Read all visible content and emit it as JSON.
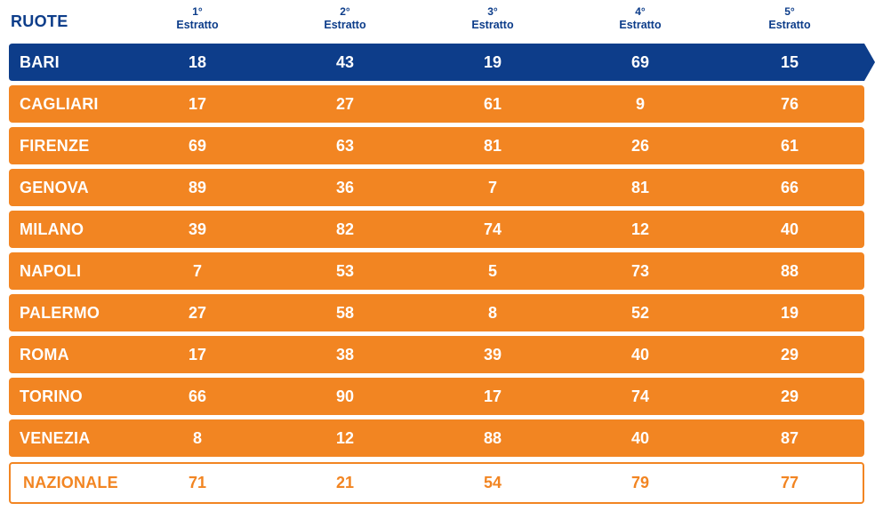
{
  "header": {
    "ruote_label": "RUOTE",
    "columns": [
      {
        "ord": "1°",
        "label": "Estratto"
      },
      {
        "ord": "2°",
        "label": "Estratto"
      },
      {
        "ord": "3°",
        "label": "Estratto"
      },
      {
        "ord": "4°",
        "label": "Estratto"
      },
      {
        "ord": "5°",
        "label": "Estratto"
      }
    ]
  },
  "rows": [
    {
      "city": "BARI",
      "numbers": [
        "18",
        "43",
        "19",
        "69",
        "15"
      ]
    },
    {
      "city": "CAGLIARI",
      "numbers": [
        "17",
        "27",
        "61",
        "9",
        "76"
      ]
    },
    {
      "city": "FIRENZE",
      "numbers": [
        "69",
        "63",
        "81",
        "26",
        "61"
      ]
    },
    {
      "city": "GENOVA",
      "numbers": [
        "89",
        "36",
        "7",
        "81",
        "66"
      ]
    },
    {
      "city": "MILANO",
      "numbers": [
        "39",
        "82",
        "74",
        "12",
        "40"
      ]
    },
    {
      "city": "NAPOLI",
      "numbers": [
        "7",
        "53",
        "5",
        "73",
        "88"
      ]
    },
    {
      "city": "PALERMO",
      "numbers": [
        "27",
        "58",
        "8",
        "52",
        "19"
      ]
    },
    {
      "city": "ROMA",
      "numbers": [
        "17",
        "38",
        "39",
        "40",
        "29"
      ]
    },
    {
      "city": "TORINO",
      "numbers": [
        "66",
        "90",
        "17",
        "74",
        "29"
      ]
    },
    {
      "city": "VENEZIA",
      "numbers": [
        "8",
        "12",
        "88",
        "40",
        "87"
      ]
    },
    {
      "city": "NAZIONALE",
      "numbers": [
        "71",
        "21",
        "54",
        "79",
        "77"
      ]
    }
  ],
  "colors": {
    "selected_row": "#0d3d8a",
    "row": "#f28522",
    "national_border": "#f28522",
    "header_text": "#0d3d8a"
  }
}
